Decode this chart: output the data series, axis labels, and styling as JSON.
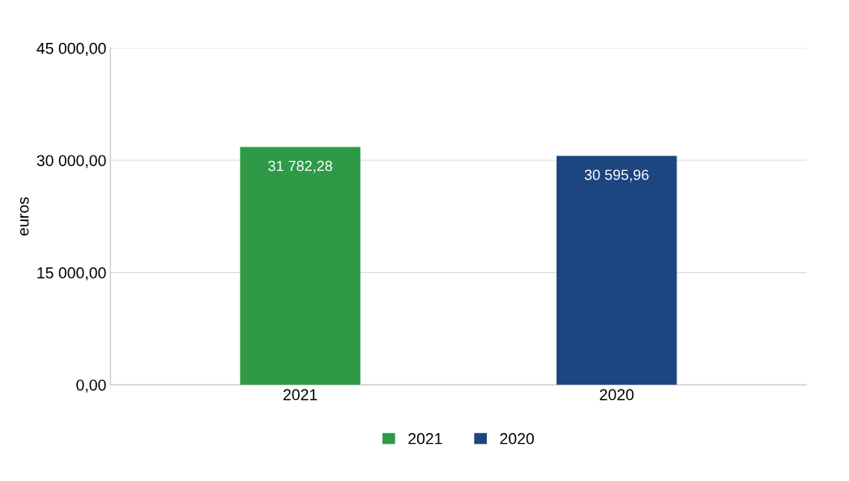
{
  "chart_data": {
    "type": "bar",
    "ylabel": "euros",
    "categories": [
      "2021",
      "2020"
    ],
    "series": [
      {
        "name": "2021",
        "color": "#2e9a48",
        "values": [
          31782.28,
          null
        ],
        "value_labels": [
          "31 782,28",
          null
        ]
      },
      {
        "name": "2020",
        "color": "#1d4580",
        "values": [
          null,
          30595.96
        ],
        "value_labels": [
          null,
          "30 595,96"
        ]
      }
    ],
    "ylim": [
      0,
      45000
    ],
    "yticks": [
      {
        "value": 0,
        "label": "0,00"
      },
      {
        "value": 15000,
        "label": "15 000,00"
      },
      {
        "value": 30000,
        "label": "30 000,00"
      },
      {
        "value": 45000,
        "label": "45 000,00"
      }
    ],
    "grid": "y",
    "legend": "bottom"
  }
}
